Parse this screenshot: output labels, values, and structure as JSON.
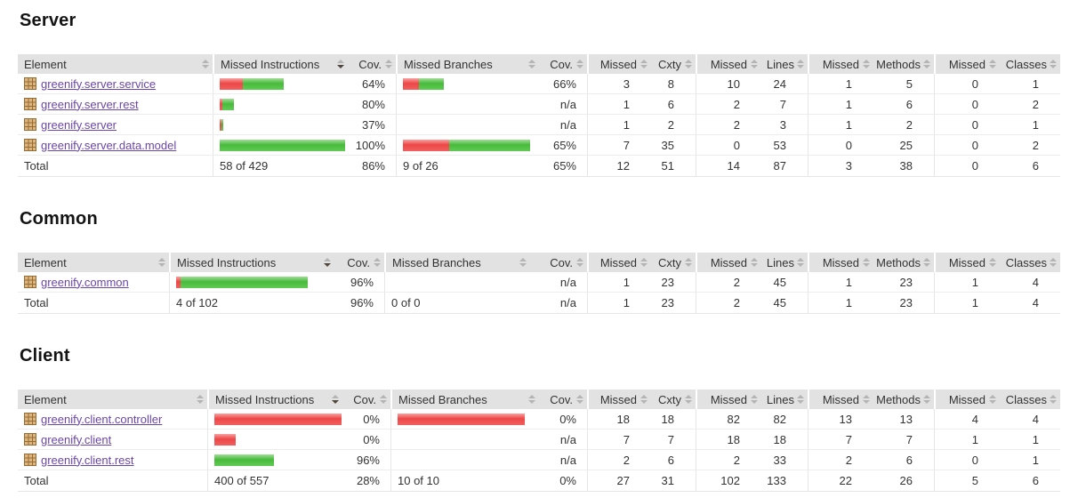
{
  "colors": {
    "bar_red": "#ee4747",
    "bar_green": "#47bb3b",
    "link_purple": "#6b46a8",
    "header_bg": "#e2e2e2"
  },
  "icons": {
    "package_icon": "brown-waffle-grid-package",
    "sort_icon": "up-down-triangles"
  },
  "columns": {
    "element": "Element",
    "missed_instructions": "Missed Instructions",
    "cov": "Cov.",
    "missed_branches": "Missed Branches",
    "missed": "Missed",
    "cxty": "Cxty",
    "lines": "Lines",
    "methods": "Methods",
    "classes": "Classes"
  },
  "sections": [
    {
      "title": "Server",
      "rows": [
        {
          "name": "greenify.server.service",
          "ins_red": 26,
          "ins_green": 46,
          "ins_cov": "64%",
          "br_red": 18,
          "br_green": 28,
          "br_cov": "66%",
          "missed_cxty": "3",
          "cxty": "8",
          "missed_lines": "10",
          "lines": "24",
          "missed_methods": "1",
          "methods": "5",
          "missed_classes": "0",
          "classes": "1"
        },
        {
          "name": "greenify.server.rest",
          "ins_red": 3,
          "ins_green": 13,
          "ins_cov": "80%",
          "br_red": 0,
          "br_green": 0,
          "br_cov": "n/a",
          "missed_cxty": "1",
          "cxty": "6",
          "missed_lines": "2",
          "lines": "7",
          "missed_methods": "1",
          "methods": "6",
          "missed_classes": "0",
          "classes": "2"
        },
        {
          "name": "greenify.server",
          "ins_red": 2,
          "ins_green": 2,
          "ins_cov": "37%",
          "br_red": 0,
          "br_green": 0,
          "br_cov": "n/a",
          "missed_cxty": "1",
          "cxty": "2",
          "missed_lines": "2",
          "lines": "3",
          "missed_methods": "1",
          "methods": "2",
          "missed_classes": "0",
          "classes": "1"
        },
        {
          "name": "greenify.server.data.model",
          "ins_red": 0,
          "ins_green": 141,
          "ins_cov": "100%",
          "br_red": 52,
          "br_green": 91,
          "br_cov": "65%",
          "missed_cxty": "7",
          "cxty": "35",
          "missed_lines": "0",
          "lines": "53",
          "missed_methods": "0",
          "methods": "25",
          "missed_classes": "0",
          "classes": "2"
        }
      ],
      "total": {
        "label": "Total",
        "ins": "58 of 429",
        "ins_cov": "86%",
        "br": "9 of 26",
        "br_cov": "65%",
        "missed_cxty": "12",
        "cxty": "51",
        "missed_lines": "14",
        "lines": "87",
        "missed_methods": "3",
        "methods": "38",
        "missed_classes": "0",
        "classes": "6"
      }
    },
    {
      "title": "Common",
      "rows": [
        {
          "name": "greenify.common",
          "ins_red": 5,
          "ins_green": 143,
          "ins_cov": "96%",
          "br_red": 0,
          "br_green": 0,
          "br_cov": "n/a",
          "missed_cxty": "1",
          "cxty": "23",
          "missed_lines": "2",
          "lines": "45",
          "missed_methods": "1",
          "methods": "23",
          "missed_classes": "1",
          "classes": "4"
        }
      ],
      "total": {
        "label": "Total",
        "ins": "4 of 102",
        "ins_cov": "96%",
        "br": "0 of 0",
        "br_cov": "n/a",
        "missed_cxty": "1",
        "cxty": "23",
        "missed_lines": "2",
        "lines": "45",
        "missed_methods": "1",
        "methods": "23",
        "missed_classes": "1",
        "classes": "4"
      }
    },
    {
      "title": "Client",
      "rows": [
        {
          "name": "greenify.client.controller",
          "ins_red": 143,
          "ins_green": 0,
          "ins_cov": "0%",
          "br_red": 143,
          "br_green": 0,
          "br_cov": "0%",
          "missed_cxty": "18",
          "cxty": "18",
          "missed_lines": "82",
          "lines": "82",
          "missed_methods": "13",
          "methods": "13",
          "missed_classes": "4",
          "classes": "4"
        },
        {
          "name": "greenify.client",
          "ins_red": 24,
          "ins_green": 0,
          "ins_cov": "0%",
          "br_red": 0,
          "br_green": 0,
          "br_cov": "n/a",
          "missed_cxty": "7",
          "cxty": "7",
          "missed_lines": "18",
          "lines": "18",
          "missed_methods": "7",
          "methods": "7",
          "missed_classes": "1",
          "classes": "1"
        },
        {
          "name": "greenify.client.rest",
          "ins_red": 0,
          "ins_green": 67,
          "ins_cov": "96%",
          "br_red": 0,
          "br_green": 0,
          "br_cov": "n/a",
          "missed_cxty": "2",
          "cxty": "6",
          "missed_lines": "2",
          "lines": "33",
          "missed_methods": "2",
          "methods": "6",
          "missed_classes": "0",
          "classes": "1"
        }
      ],
      "total": {
        "label": "Total",
        "ins": "400 of 557",
        "ins_cov": "28%",
        "br": "10 of 10",
        "br_cov": "0%",
        "missed_cxty": "27",
        "cxty": "31",
        "missed_lines": "102",
        "lines": "133",
        "missed_methods": "22",
        "methods": "26",
        "missed_classes": "5",
        "classes": "6"
      }
    }
  ]
}
